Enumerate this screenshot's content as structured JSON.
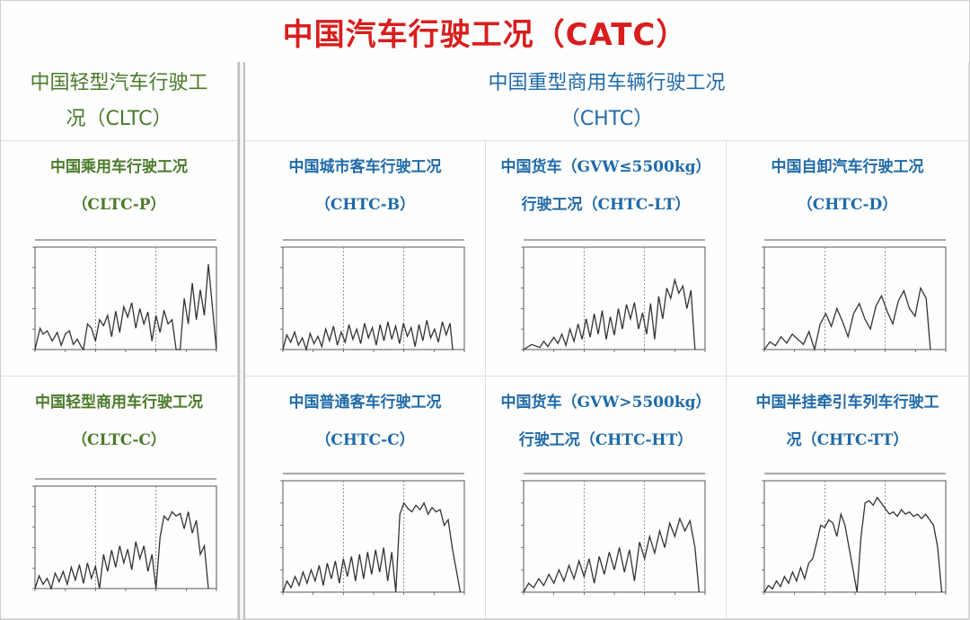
{
  "title": "中国汽车行驶工况（CATC）",
  "groups": {
    "light": {
      "line1": "中国轻型汽车行驶工",
      "line2": "况（CLTC）"
    },
    "heavy": {
      "line1": "中国重型商用车辆行驶工况",
      "line2": "（CHTC）"
    }
  },
  "colors": {
    "title": "#d81e1e",
    "light_group": "#4a7a2a",
    "heavy_group": "#1f6aa8",
    "chart_line": "#333333"
  },
  "cycles": [
    {
      "line1": "中国乘用车行驶工况",
      "line2": "（CLTC-P）",
      "color": "green"
    },
    {
      "line1": "中国城市客车行驶工况",
      "line2": "（CHTC-B）",
      "color": "blue"
    },
    {
      "line1": "中国货车（GVW≤5500kg）",
      "line2": "行驶工况（CHTC-LT）",
      "color": "blue"
    },
    {
      "line1": "中国自卸汽车行驶工况",
      "line2": "（CHTC-D）",
      "color": "blue"
    },
    {
      "line1": "中国轻型商用车行驶工况",
      "line2": "（CLTC-C）",
      "color": "green"
    },
    {
      "line1": "中国普通客车行驶工况",
      "line2": "（CHTC-C）",
      "color": "blue"
    },
    {
      "line1": "中国货车（GVW>5500kg）",
      "line2": "行驶工况（CHTC-HT）",
      "color": "blue"
    },
    {
      "line1": "中国半挂牵引车列车行驶工",
      "line2": "况（CHTC-TT）",
      "color": "blue"
    }
  ],
  "chart_data": [
    {
      "type": "line",
      "cycle": "CLTC-P",
      "xlim": [
        0,
        1800
      ],
      "ylim": [
        0,
        120
      ],
      "x": [
        0,
        50,
        80,
        120,
        170,
        220,
        260,
        300,
        340,
        380,
        420,
        460,
        480,
        520,
        560,
        600,
        640,
        680,
        720,
        760,
        800,
        840,
        880,
        920,
        960,
        1000,
        1040,
        1080,
        1120,
        1160,
        1200,
        1240,
        1280,
        1320,
        1360,
        1400,
        1440,
        1480,
        1520,
        1560,
        1600,
        1640,
        1680,
        1720,
        1760,
        1800
      ],
      "y": [
        0,
        25,
        18,
        22,
        10,
        20,
        5,
        18,
        22,
        6,
        12,
        3,
        0,
        30,
        25,
        10,
        35,
        28,
        40,
        15,
        45,
        20,
        50,
        38,
        55,
        25,
        48,
        30,
        44,
        10,
        40,
        20,
        46,
        30,
        35,
        0,
        0,
        60,
        30,
        78,
        35,
        70,
        40,
        100,
        50,
        0
      ]
    },
    {
      "type": "line",
      "cycle": "CHTC-B",
      "xlim": [
        0,
        1400
      ],
      "ylim": [
        0,
        70
      ],
      "x": [
        0,
        30,
        60,
        90,
        120,
        150,
        180,
        210,
        240,
        270,
        300,
        330,
        360,
        390,
        420,
        450,
        480,
        510,
        540,
        570,
        600,
        630,
        660,
        690,
        720,
        750,
        780,
        810,
        840,
        870,
        900,
        930,
        960,
        990,
        1020,
        1050,
        1080,
        1110,
        1140,
        1170,
        1200,
        1230,
        1260,
        1290,
        1310
      ],
      "y": [
        0,
        10,
        5,
        12,
        3,
        8,
        0,
        11,
        4,
        9,
        2,
        14,
        6,
        16,
        3,
        12,
        5,
        17,
        7,
        14,
        4,
        18,
        8,
        15,
        3,
        17,
        6,
        19,
        7,
        16,
        4,
        18,
        9,
        15,
        2,
        17,
        6,
        20,
        8,
        14,
        5,
        19,
        10,
        18,
        0
      ]
    },
    {
      "type": "line",
      "cycle": "CHTC-LT",
      "xlim": [
        0,
        1800
      ],
      "ylim": [
        0,
        100
      ],
      "x": [
        0,
        80,
        160,
        200,
        240,
        300,
        340,
        380,
        420,
        460,
        500,
        540,
        580,
        620,
        660,
        700,
        740,
        780,
        820,
        860,
        900,
        940,
        980,
        1020,
        1060,
        1100,
        1140,
        1180,
        1220,
        1260,
        1300,
        1340,
        1380,
        1420,
        1460,
        1500,
        1540,
        1580,
        1620,
        1660,
        1700
      ],
      "y": [
        0,
        5,
        2,
        8,
        3,
        12,
        6,
        15,
        4,
        20,
        8,
        25,
        10,
        30,
        12,
        35,
        15,
        38,
        10,
        32,
        14,
        40,
        20,
        44,
        30,
        46,
        20,
        36,
        15,
        45,
        10,
        52,
        30,
        60,
        50,
        68,
        55,
        62,
        40,
        58,
        0
      ]
    },
    {
      "type": "line",
      "cycle": "CHTC-D",
      "xlim": [
        0,
        1300
      ],
      "ylim": [
        0,
        80
      ],
      "x": [
        0,
        40,
        80,
        120,
        160,
        200,
        240,
        280,
        320,
        360,
        400,
        440,
        480,
        520,
        560,
        600,
        640,
        680,
        720,
        760,
        800,
        840,
        880,
        920,
        960,
        1000,
        1040,
        1080,
        1120,
        1160,
        1190
      ],
      "y": [
        0,
        6,
        3,
        10,
        5,
        12,
        8,
        4,
        14,
        0,
        20,
        28,
        18,
        32,
        22,
        10,
        28,
        36,
        24,
        16,
        34,
        42,
        30,
        20,
        38,
        46,
        32,
        26,
        48,
        40,
        0
      ]
    },
    {
      "type": "line",
      "cycle": "CLTC-C",
      "xlim": [
        0,
        1800
      ],
      "ylim": [
        0,
        120
      ],
      "x": [
        0,
        40,
        80,
        120,
        160,
        200,
        240,
        280,
        320,
        360,
        400,
        440,
        480,
        520,
        560,
        600,
        640,
        680,
        720,
        760,
        800,
        840,
        880,
        920,
        960,
        1000,
        1040,
        1080,
        1120,
        1160,
        1200,
        1240,
        1280,
        1320,
        1360,
        1400,
        1440,
        1480,
        1520,
        1560,
        1600,
        1640,
        1680,
        1720
      ],
      "y": [
        0,
        15,
        5,
        12,
        0,
        18,
        8,
        20,
        5,
        25,
        10,
        28,
        6,
        30,
        12,
        26,
        0,
        40,
        20,
        45,
        25,
        50,
        30,
        46,
        22,
        55,
        35,
        50,
        20,
        40,
        0,
        60,
        85,
        80,
        90,
        85,
        88,
        70,
        90,
        65,
        80,
        40,
        50,
        0
      ]
    },
    {
      "type": "line",
      "cycle": "CHTC-C",
      "xlim": [
        0,
        1800
      ],
      "ylim": [
        0,
        100
      ],
      "x": [
        0,
        40,
        80,
        120,
        160,
        200,
        240,
        280,
        320,
        360,
        400,
        440,
        480,
        520,
        560,
        600,
        640,
        680,
        720,
        760,
        800,
        840,
        880,
        920,
        960,
        1000,
        1040,
        1080,
        1120,
        1160,
        1200,
        1240,
        1280,
        1320,
        1360,
        1400,
        1440,
        1480,
        1520,
        1560,
        1600,
        1640,
        1680,
        1720,
        1760
      ],
      "y": [
        0,
        10,
        4,
        14,
        6,
        18,
        8,
        20,
        10,
        24,
        6,
        26,
        12,
        28,
        8,
        30,
        14,
        32,
        10,
        34,
        12,
        36,
        16,
        38,
        18,
        40,
        10,
        36,
        0,
        70,
        80,
        75,
        72,
        78,
        74,
        80,
        70,
        76,
        72,
        74,
        60,
        65,
        40,
        20,
        0
      ]
    },
    {
      "type": "line",
      "cycle": "CHTC-HT",
      "xlim": [
        0,
        1800
      ],
      "ylim": [
        0,
        100
      ],
      "x": [
        0,
        50,
        100,
        150,
        200,
        250,
        300,
        350,
        400,
        450,
        500,
        550,
        600,
        650,
        700,
        750,
        800,
        850,
        900,
        950,
        1000,
        1050,
        1100,
        1150,
        1200,
        1250,
        1300,
        1350,
        1400,
        1450,
        1500,
        1550,
        1600,
        1650,
        1700,
        1740
      ],
      "y": [
        0,
        8,
        4,
        12,
        6,
        16,
        8,
        20,
        10,
        24,
        12,
        28,
        14,
        30,
        8,
        32,
        16,
        36,
        20,
        40,
        18,
        38,
        10,
        45,
        30,
        50,
        35,
        55,
        40,
        62,
        50,
        66,
        55,
        64,
        40,
        0
      ]
    },
    {
      "type": "line",
      "cycle": "CHTC-TT",
      "xlim": [
        0,
        1800
      ],
      "ylim": [
        0,
        100
      ],
      "x": [
        0,
        40,
        80,
        120,
        160,
        200,
        240,
        280,
        320,
        360,
        400,
        440,
        480,
        520,
        560,
        600,
        640,
        680,
        720,
        760,
        800,
        840,
        880,
        920,
        960,
        1000,
        1040,
        1080,
        1120,
        1160,
        1200,
        1240,
        1280,
        1320,
        1360,
        1400,
        1440,
        1480,
        1520,
        1560,
        1600,
        1640,
        1680,
        1720,
        1760
      ],
      "y": [
        0,
        6,
        3,
        10,
        5,
        14,
        8,
        18,
        10,
        22,
        12,
        26,
        30,
        45,
        60,
        58,
        65,
        62,
        50,
        70,
        60,
        40,
        20,
        0,
        50,
        80,
        82,
        78,
        85,
        80,
        75,
        70,
        72,
        68,
        74,
        70,
        72,
        68,
        70,
        66,
        70,
        65,
        60,
        40,
        0
      ]
    }
  ]
}
